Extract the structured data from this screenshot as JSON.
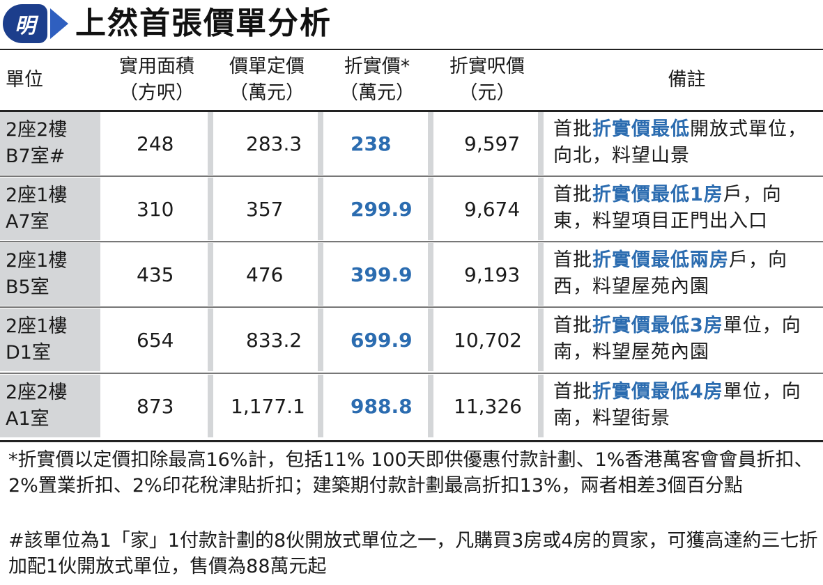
{
  "header": {
    "logo_text": "明",
    "title": "上然首張價單分析",
    "brand_color": "#1c3e8c"
  },
  "columns": [
    {
      "line1": "單位",
      "line2": ""
    },
    {
      "line1": "實用面積",
      "line2": "（方呎）"
    },
    {
      "line1": "價單定價",
      "line2": "（萬元）"
    },
    {
      "line1": "折實價*",
      "line2": "（萬元）"
    },
    {
      "line1": "折實呎價",
      "line2": "（元）"
    },
    {
      "line1": "備註",
      "line2": ""
    }
  ],
  "rows": [
    {
      "unit_line1": "2座2樓",
      "unit_line2": "B7室#",
      "area": "248",
      "list_price": "283.3",
      "discount_price": "238",
      "psf": "9,597",
      "remark_pre": "首批",
      "remark_hl": "折實價最低",
      "remark_post": "開放式單位，向北，料望山景"
    },
    {
      "unit_line1": "2座1樓",
      "unit_line2": "A7室",
      "area": "310",
      "list_price": "357",
      "discount_price": "299.9",
      "psf": "9,674",
      "remark_pre": "首批",
      "remark_hl": "折實價最低1房",
      "remark_post": "戶，向東，料望項目正門出入口"
    },
    {
      "unit_line1": "2座1樓",
      "unit_line2": "B5室",
      "area": "435",
      "list_price": "476",
      "discount_price": "399.9",
      "psf": "9,193",
      "remark_pre": "首批",
      "remark_hl": "折實價最低兩房",
      "remark_post": "戶，向西，料望屋苑內園"
    },
    {
      "unit_line1": "2座1樓",
      "unit_line2": "D1室",
      "area": "654",
      "list_price": "833.2",
      "discount_price": "699.9",
      "psf": "10,702",
      "remark_pre": "首批",
      "remark_hl": "折實價最低3房",
      "remark_post": "單位，向南，料望屋苑內園"
    },
    {
      "unit_line1": "2座2樓",
      "unit_line2": "A1室",
      "area": "873",
      "list_price": "1,177.1",
      "discount_price": "988.8",
      "psf": "11,326",
      "remark_pre": "首批",
      "remark_hl": "折實價最低4房",
      "remark_post": "單位，向南，料望街景"
    }
  ],
  "footnotes": {
    "asterisk": "*折實價以定價扣除最高16%計，包括11% 100天即供優惠付款計劃、1%香港萬客會會員折扣、2%置業折扣、2%印花稅津貼折扣；建築期付款計劃最高折扣13%，兩者相差3個百分點",
    "hash": "#該單位為1「家」1付款計劃的8伙開放式單位之一，凡購買3房或4房的買家，可獲高達約三七折加配1伙開放式單位，售價為88萬元起"
  },
  "colors": {
    "highlight": "#2b6cb0",
    "shade": "#d4d6d8"
  }
}
